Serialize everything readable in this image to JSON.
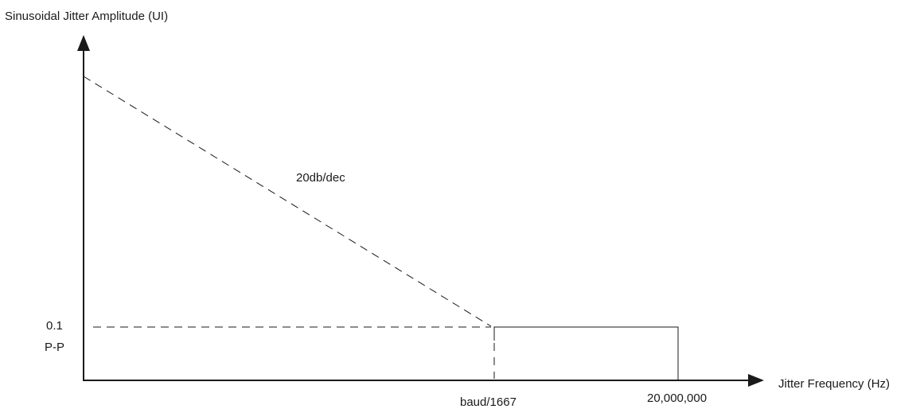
{
  "diagram": {
    "y_axis_label": "Sinusoidal Jitter Amplitude (UI)",
    "x_axis_label": "Jitter Frequency (Hz)",
    "slope_label": "20db/dec",
    "amplitude_value": "0.1",
    "amplitude_unit": "P-P",
    "corner_frequency_label": "baud/1667",
    "max_frequency_label": "20,000,000",
    "colors": {
      "line": "#1a1a1a",
      "background": "#ffffff"
    }
  }
}
